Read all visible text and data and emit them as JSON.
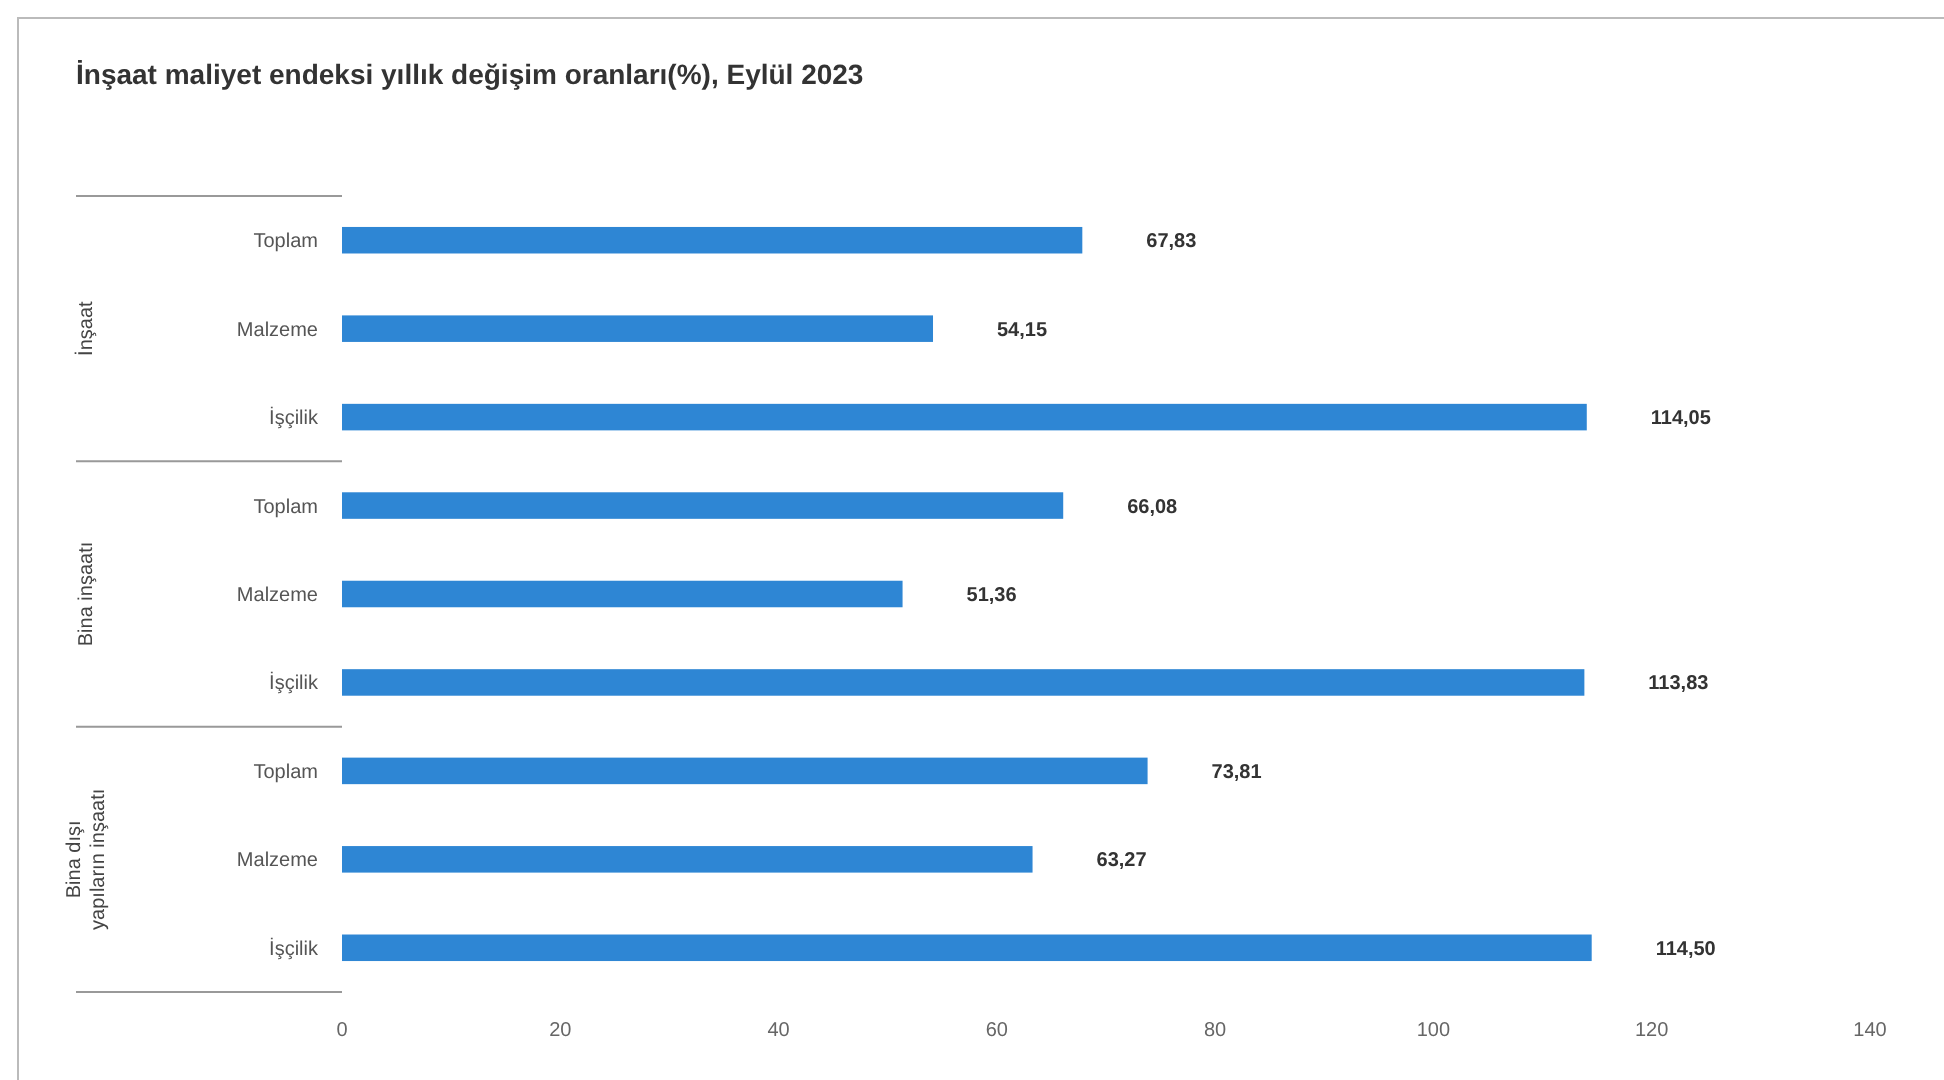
{
  "chart_data": {
    "type": "bar",
    "orientation": "horizontal",
    "title": "İnşaat maliyet endeksi yıllık değişim oranları(%), Eylül 2023",
    "categories": [
      "Toplam",
      "Malzeme",
      "İşçilik",
      "Toplam",
      "Malzeme",
      "İşçilik",
      "Toplam",
      "Malzeme",
      "İşçilik"
    ],
    "values": [
      67.83,
      54.15,
      114.05,
      66.08,
      51.36,
      113.83,
      73.81,
      63.27,
      114.5
    ],
    "value_labels": [
      "67,83",
      "54,15",
      "114,05",
      "66,08",
      "51,36",
      "113,83",
      "73,81",
      "63,27",
      "114,50"
    ],
    "color": "#2e86d4",
    "xlim": [
      0,
      140
    ],
    "xticks": [
      0,
      20,
      40,
      60,
      80,
      100,
      120,
      140
    ],
    "annotations": [
      "İnşaat",
      "Bina inşaatı",
      "Bina dışı yapıların inşaatı"
    ],
    "grid": false
  }
}
